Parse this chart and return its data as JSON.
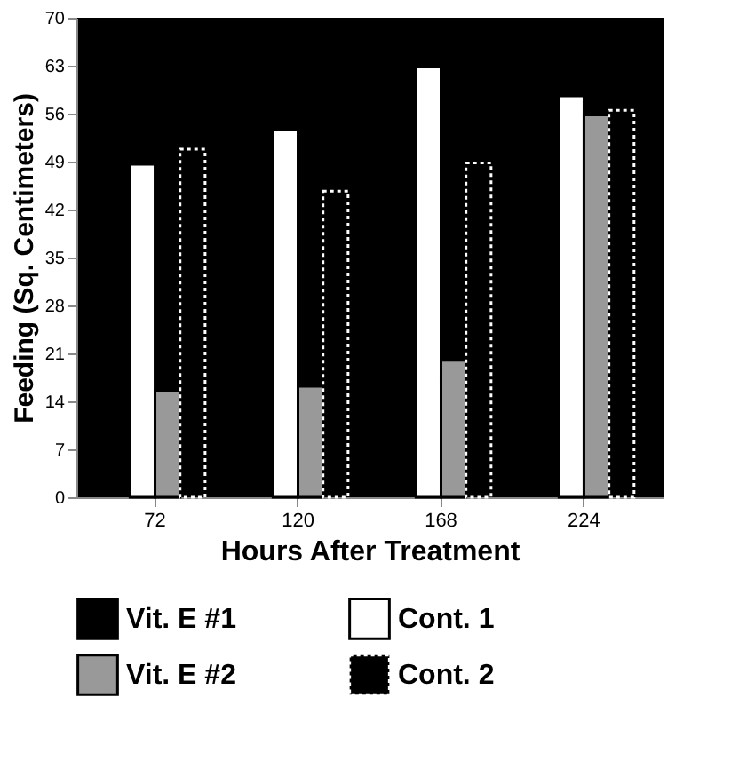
{
  "chart_data": {
    "type": "bar",
    "xlabel": "Hours After Treatment",
    "ylabel": "Feeding (Sq. Centimeters)",
    "categories": [
      "72",
      "120",
      "168",
      "224"
    ],
    "series": [
      {
        "name": "Vit. E #1",
        "color": "#000000",
        "values": [
          null,
          null,
          null,
          null
        ]
      },
      {
        "name": "Cont. 1",
        "color": "#ffffff",
        "values": [
          48.6,
          53.7,
          62.8,
          58.6
        ]
      },
      {
        "name": "Vit. E #2",
        "color": "#999999",
        "values": [
          15.6,
          16.2,
          20.0,
          55.8
        ]
      },
      {
        "name": "Cont. 2",
        "color": "#000000",
        "line_style": "dotted",
        "values": [
          50.8,
          44.7,
          48.8,
          56.5
        ]
      }
    ],
    "ylim": [
      0,
      70
    ],
    "yticks": [
      0,
      7,
      14,
      21,
      28,
      35,
      42,
      49,
      56,
      63,
      70
    ],
    "grid": false,
    "legend": "bottom"
  }
}
